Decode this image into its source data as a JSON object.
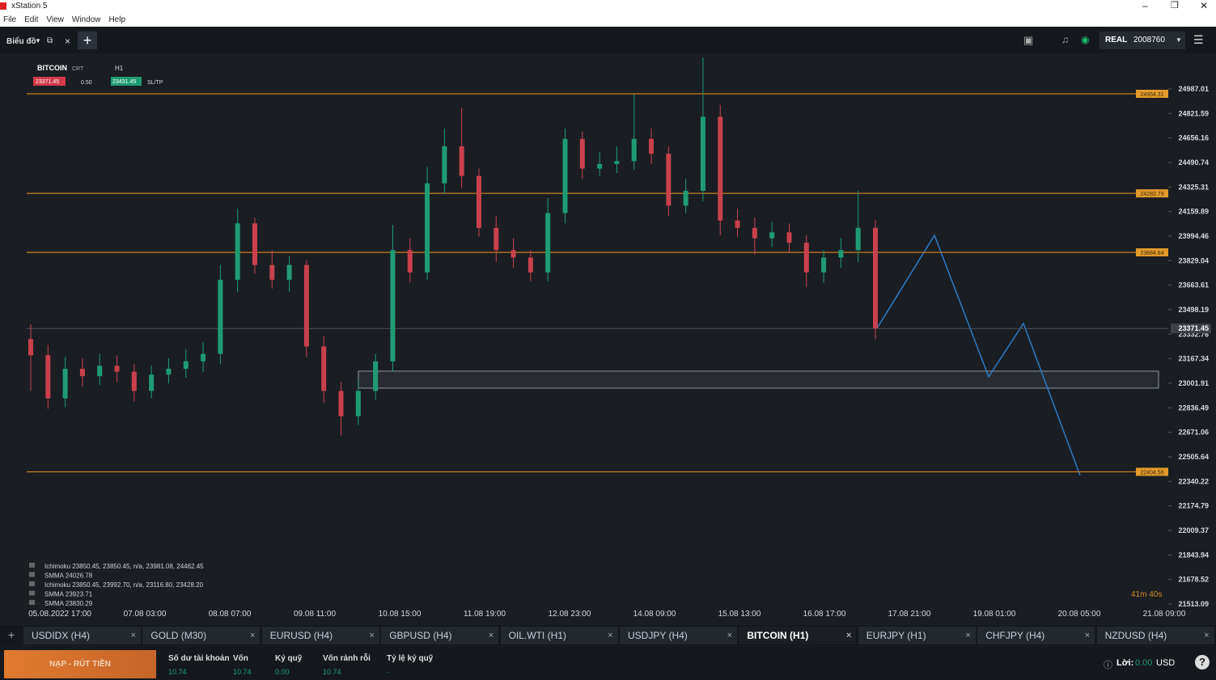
{
  "window": {
    "title": "xStation 5",
    "menu": [
      "File",
      "Edit",
      "View",
      "Window",
      "Help"
    ]
  },
  "toolbar": {
    "section": "Biểu đồ",
    "account_type": "REAL",
    "account_id": "2008760"
  },
  "chart": {
    "symbol": "BITCOIN",
    "chart_type": "CRT",
    "timeframe": "H1",
    "bid": "23371.45",
    "lot": "0.50",
    "ask": "23431.45",
    "sltp": "SL/TP",
    "ylim": [
      21387.66,
      25216.06
    ],
    "yticks": [
      24987.01,
      24821.59,
      24656.16,
      24490.74,
      24325.31,
      24159.89,
      23994.46,
      23829.04,
      23663.61,
      23498.19,
      23332.76,
      23167.34,
      23001.91,
      22836.49,
      22671.06,
      22505.64,
      22340.22,
      22174.79,
      22009.37,
      21843.94,
      21678.52,
      21513.09
    ],
    "current_price": 23371.45,
    "levels": [
      24954.31,
      24282.79,
      23884.84,
      22404.56
    ],
    "x_labels": [
      "05.08.2022 17:00",
      "07.08 03:00",
      "08.08 07:00",
      "09.08 11:00",
      "10.08 15:00",
      "11.08 19:00",
      "12.08 23:00",
      "14.08 09:00",
      "15.08 13:00",
      "16.08 17:00",
      "17.08 21:00",
      "19.08 01:00",
      "20.08 05:00",
      "21.08 09:00"
    ],
    "candles": {
      "open": [
        23300,
        23190,
        22900,
        23100,
        23050,
        23120,
        23080,
        22950,
        23060,
        23100,
        23150,
        23200,
        23700,
        24080,
        23800,
        23700,
        23800,
        23250,
        22950,
        22780,
        22950,
        23150,
        23900,
        23750,
        24350,
        24600,
        24400,
        24050,
        23900,
        23850,
        23750,
        24150,
        24650,
        24450,
        24480,
        24500,
        24650,
        24550,
        24200,
        24300,
        24800,
        24100,
        24050,
        23980,
        24020,
        23950,
        23750,
        23850,
        23900,
        24050
      ],
      "high": [
        23400,
        23260,
        23180,
        23170,
        23200,
        23190,
        23130,
        23120,
        23170,
        23230,
        23280,
        23800,
        24180,
        24120,
        23900,
        23860,
        23830,
        23320,
        23010,
        23020,
        23200,
        24070,
        23980,
        24460,
        24720,
        24860,
        24450,
        24130,
        23980,
        23900,
        24250,
        24720,
        24700,
        24560,
        24600,
        24950,
        24720,
        24600,
        24380,
        25200,
        24880,
        24180,
        24120,
        24090,
        24080,
        24000,
        23900,
        23980,
        24300,
        24100
      ],
      "low": [
        22950,
        22830,
        22840,
        22980,
        22990,
        23010,
        22880,
        22900,
        23000,
        23040,
        23080,
        23130,
        23620,
        23740,
        23640,
        23620,
        23180,
        22870,
        22650,
        22720,
        22890,
        23080,
        23680,
        23700,
        24280,
        24320,
        23990,
        23820,
        23780,
        23690,
        23690,
        24080,
        24380,
        24400,
        24420,
        24440,
        24480,
        24130,
        24150,
        24230,
        24000,
        23990,
        23870,
        23920,
        23880,
        23650,
        23680,
        23780,
        23820,
        23300
      ],
      "close": [
        23190,
        22900,
        23100,
        23050,
        23120,
        23080,
        22950,
        23060,
        23100,
        23150,
        23200,
        23700,
        24080,
        23800,
        23700,
        23800,
        23250,
        22950,
        22780,
        22950,
        23150,
        23900,
        23750,
        24350,
        24600,
        24400,
        24050,
        23900,
        23850,
        23750,
        24150,
        24650,
        24450,
        24480,
        24500,
        24650,
        24550,
        24200,
        24300,
        24800,
        24100,
        24050,
        23980,
        24020,
        23950,
        23750,
        23850,
        23900,
        24050,
        23371.45
      ]
    },
    "indicators": [
      "Ichimoku 23850.45, 23850.45, n/a, 23981.08, 24462.45",
      "SMMA 24026.78",
      "Ichimoku 23850.45, 23992.70, n/a, 23116.80, 23428.20",
      "SMMA 23923.71",
      "SMMA 23830.29"
    ],
    "countdown": "41m 40s"
  },
  "tabs": [
    "USDIDX (H4)",
    "GOLD (M30)",
    "EURUSD (H4)",
    "GBPUSD (H4)",
    "OIL.WTI (H1)",
    "USDJPY (H4)",
    "BITCOIN (H1)",
    "EURJPY (H1)",
    "CHFJPY (H4)",
    "NZDUSD (H4)"
  ],
  "active_tab": "BITCOIN (H1)",
  "account": {
    "deposit_button": "NẠP - RÚT TIỀN",
    "fields": [
      {
        "label": "Số dư tài khoản",
        "value": "10.74"
      },
      {
        "label": "Vốn",
        "value": "10.74"
      },
      {
        "label": "Ký quỹ",
        "value": "0.00"
      },
      {
        "label": "Vốn rảnh rỗi",
        "value": "10.74"
      },
      {
        "label": "Tỷ lệ ký quỹ",
        "value": "-"
      }
    ],
    "profit_label": "Lời:",
    "profit": "0.00",
    "currency": "USD"
  }
}
